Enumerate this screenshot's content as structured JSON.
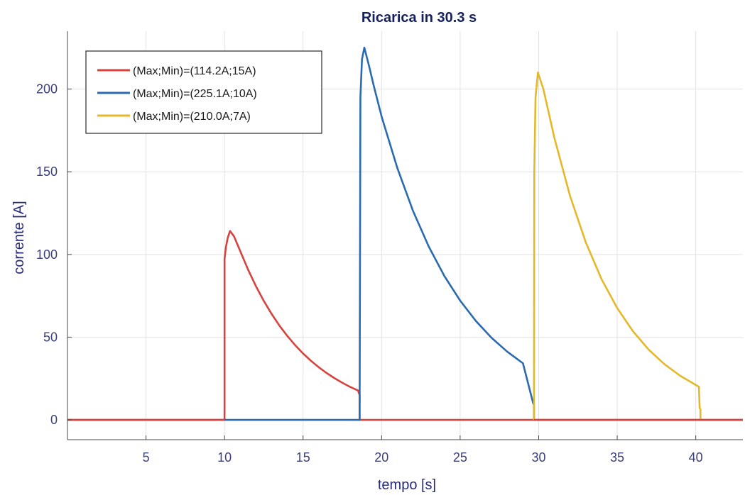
{
  "chart_data": {
    "type": "line",
    "title": "Ricarica in 30.3 s",
    "xlabel": "tempo [s]",
    "ylabel": "corrente [A]",
    "xlim": [
      0,
      43
    ],
    "ylim": [
      -12,
      235
    ],
    "xticks": [
      5,
      10,
      15,
      20,
      25,
      30,
      35,
      40
    ],
    "yticks": [
      0,
      50,
      100,
      150,
      200
    ],
    "grid": true,
    "legend_position": "top-left",
    "series": [
      {
        "name": "(Max;Min)=(114.2A;15A)",
        "color": "#d6433e",
        "points": [
          [
            0,
            0
          ],
          [
            10,
            0
          ],
          [
            10,
            97
          ],
          [
            10.08,
            104
          ],
          [
            10.2,
            110
          ],
          [
            10.35,
            114.2
          ],
          [
            10.6,
            111
          ],
          [
            11,
            102
          ],
          [
            11.5,
            90.8
          ],
          [
            12,
            80.8
          ],
          [
            12.5,
            71.9
          ],
          [
            13,
            64.0
          ],
          [
            13.5,
            56.9
          ],
          [
            14,
            50.7
          ],
          [
            14.5,
            45.1
          ],
          [
            15,
            40.1
          ],
          [
            15.5,
            35.7
          ],
          [
            16,
            31.8
          ],
          [
            16.5,
            28.3
          ],
          [
            17,
            25.2
          ],
          [
            17.5,
            22.4
          ],
          [
            18,
            19.9
          ],
          [
            18.5,
            17.7
          ],
          [
            18.6,
            15
          ],
          [
            18.6,
            0
          ],
          [
            29.7,
            0
          ],
          [
            29.7,
            0
          ],
          [
            43,
            0
          ]
        ]
      },
      {
        "name": "(Max;Min)=(225.1A;10A)",
        "color": "#2a6bb0",
        "points": [
          [
            10,
            0
          ],
          [
            18.6,
            0
          ],
          [
            18.65,
            195
          ],
          [
            18.75,
            218
          ],
          [
            18.9,
            225.1
          ],
          [
            19.2,
            214
          ],
          [
            19.5,
            202
          ],
          [
            20,
            183.4
          ],
          [
            21,
            152.3
          ],
          [
            22,
            126.3
          ],
          [
            23,
            104.8
          ],
          [
            24,
            86.9
          ],
          [
            25,
            72.1
          ],
          [
            26,
            59.8
          ],
          [
            27,
            49.6
          ],
          [
            28,
            41.2
          ],
          [
            29,
            34.2
          ],
          [
            29.65,
            10
          ],
          [
            29.7,
            9
          ],
          [
            29.7,
            0
          ]
        ]
      },
      {
        "name": "(Max;Min)=(210.0A;7A)",
        "color": "#e5b82a",
        "points": [
          [
            29.7,
            0
          ],
          [
            29.72,
            150
          ],
          [
            29.8,
            195
          ],
          [
            29.95,
            210
          ],
          [
            30.3,
            200
          ],
          [
            31,
            170.5
          ],
          [
            32,
            135.3
          ],
          [
            33,
            107.3
          ],
          [
            34,
            85.1
          ],
          [
            35,
            67.6
          ],
          [
            36,
            53.6
          ],
          [
            37,
            42.5
          ],
          [
            38,
            33.7
          ],
          [
            39,
            26.7
          ],
          [
            40.2,
            20
          ],
          [
            40.25,
            7
          ],
          [
            40.3,
            6.5
          ],
          [
            40.3,
            0
          ]
        ]
      }
    ]
  },
  "colors": {
    "axis": "#4a4a4a",
    "grid": "#e2e2e2",
    "background": "#ffffff"
  }
}
